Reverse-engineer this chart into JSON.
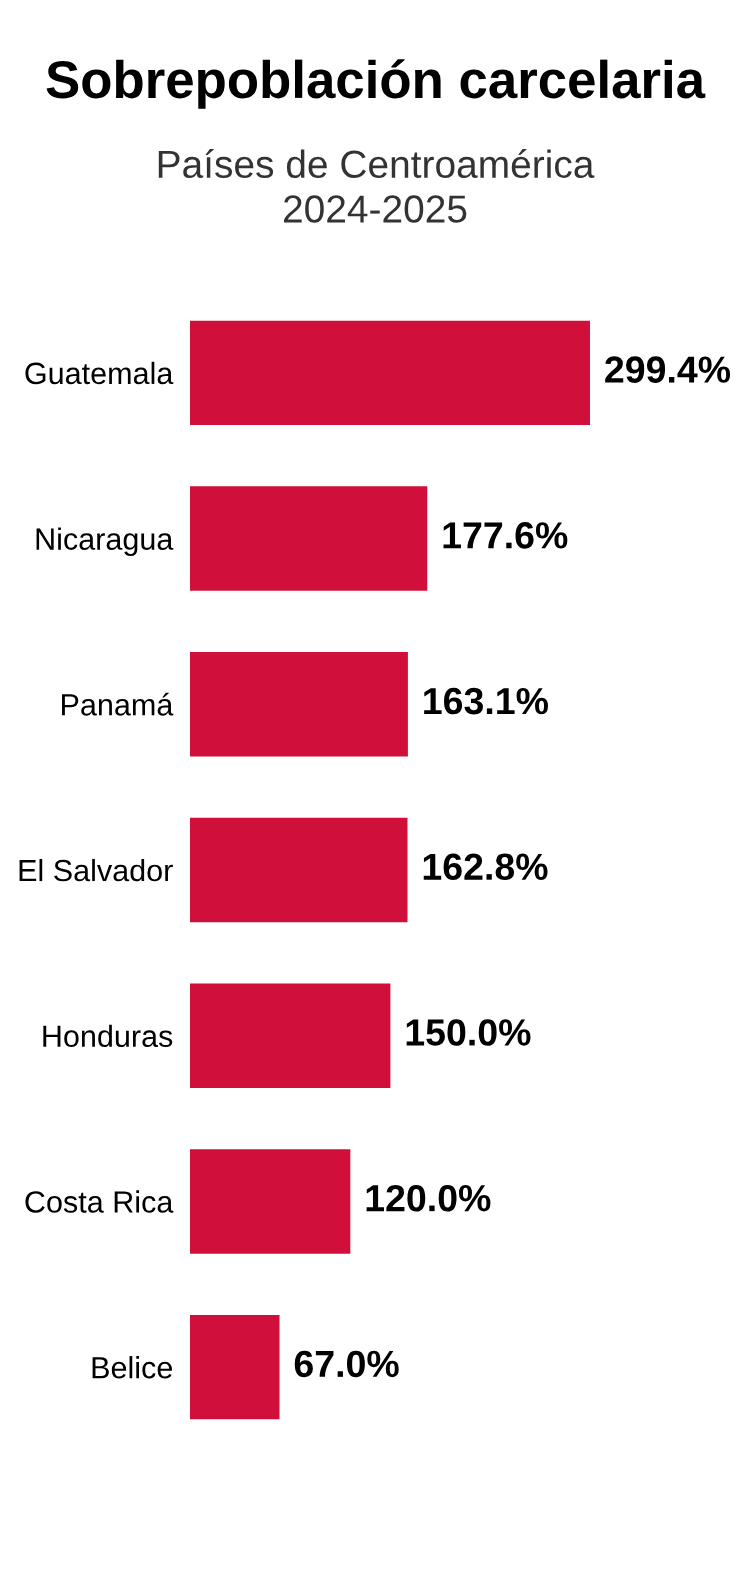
{
  "chart_data": {
    "type": "bar",
    "orientation": "horizontal",
    "title": "Sobrepoblación carcelaria",
    "subtitle": "Países de Centroamérica\n2024-2025",
    "categories": [
      "Guatemala",
      "Nicaragua",
      "Panamá",
      "El Salvador",
      "Honduras",
      "Costa Rica",
      "Belice"
    ],
    "values": [
      299.4,
      177.6,
      163.1,
      162.8,
      150.0,
      120.0,
      67.0
    ],
    "value_labels": [
      "299.4%",
      "177.6%",
      "163.1%",
      "162.8%",
      "150.0%",
      "120.0%",
      "67.0%"
    ],
    "color": "#d0103a",
    "grid": false,
    "legend": false
  }
}
